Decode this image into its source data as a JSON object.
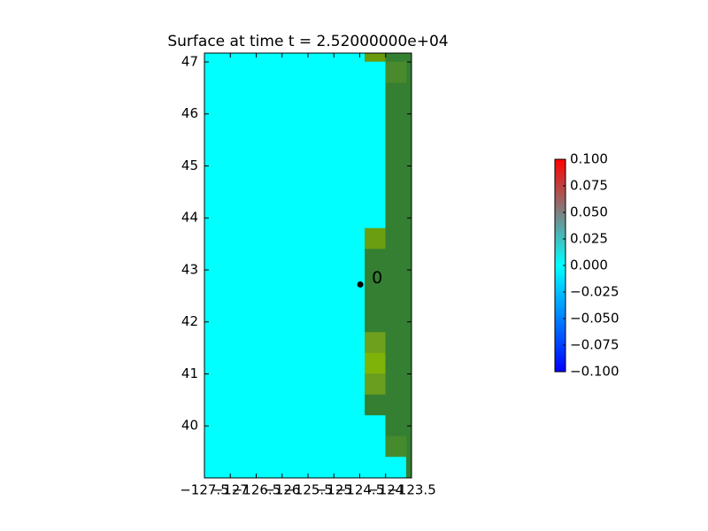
{
  "chart_data": {
    "type": "surface",
    "title": "Surface at time t = 2.52000000e+04",
    "xlim": [
      -127.5,
      -123.5
    ],
    "ylim": [
      39.0,
      47.17
    ],
    "xticks": [
      {
        "value": -127.5,
        "label": "−127.5"
      },
      {
        "value": -127,
        "label": "−127"
      },
      {
        "value": -126.5,
        "label": "−126.5"
      },
      {
        "value": -126,
        "label": "−126"
      },
      {
        "value": -125.5,
        "label": "−125.5"
      },
      {
        "value": -125,
        "label": "−125"
      },
      {
        "value": -124.5,
        "label": "−124.5"
      },
      {
        "value": -124,
        "label": "−124"
      },
      {
        "value": -123.5,
        "label": "−123.5"
      }
    ],
    "yticks": [
      40,
      41,
      42,
      43,
      44,
      45,
      46,
      47
    ],
    "cells": [
      {
        "x": [
          -127.5,
          -124.4
        ],
        "y": [
          39.0,
          47.17
        ],
        "color": "#00ffff"
      },
      {
        "x": [
          -124.4,
          -124.0
        ],
        "y": [
          47.0,
          47.17
        ],
        "color": "#6b9a0c"
      },
      {
        "x": [
          -124.4,
          -124.0
        ],
        "y": [
          43.8,
          47.0
        ],
        "color": "#00ffff"
      },
      {
        "x": [
          -124.4,
          -124.0
        ],
        "y": [
          43.4,
          43.8
        ],
        "color": "#6c9e12"
      },
      {
        "x": [
          -124.4,
          -124.0
        ],
        "y": [
          41.8,
          43.4
        ],
        "color": "#357f32"
      },
      {
        "x": [
          -124.4,
          -124.0
        ],
        "y": [
          41.4,
          41.8
        ],
        "color": "#6ea01e"
      },
      {
        "x": [
          -124.4,
          -124.0
        ],
        "y": [
          41.0,
          41.4
        ],
        "color": "#80b30a"
      },
      {
        "x": [
          -124.4,
          -124.0
        ],
        "y": [
          40.6,
          41.0
        ],
        "color": "#6a9e1e"
      },
      {
        "x": [
          -124.4,
          -124.0
        ],
        "y": [
          40.2,
          40.6
        ],
        "color": "#357f32"
      },
      {
        "x": [
          -124.4,
          -124.0
        ],
        "y": [
          39.0,
          40.2
        ],
        "color": "#00ffff"
      },
      {
        "x": [
          -124.0,
          -123.5
        ],
        "y": [
          39.4,
          47.17
        ],
        "color": "#357f32"
      },
      {
        "x": [
          -124.0,
          -123.6
        ],
        "y": [
          46.6,
          47.0
        ],
        "color": "#4a8a2c"
      },
      {
        "x": [
          -124.0,
          -123.6
        ],
        "y": [
          39.4,
          39.8
        ],
        "color": "#468a2e"
      },
      {
        "x": [
          -124.0,
          -123.6
        ],
        "y": [
          39.0,
          39.4
        ],
        "color": "#00ffff"
      },
      {
        "x": [
          -123.6,
          -123.5
        ],
        "y": [
          39.0,
          39.4
        ],
        "color": "#357f32"
      }
    ],
    "points": [
      {
        "x": -124.49,
        "y": 42.72,
        "label": "0",
        "color": "#000000"
      }
    ],
    "colorbar": {
      "lim": [
        -0.1,
        0.1
      ],
      "colors": [
        "#0000ff",
        "#0080ff",
        "#00ffff",
        "#808080",
        "#ff0000"
      ],
      "ticks": [
        {
          "value": 0.1,
          "label": "0.100"
        },
        {
          "value": 0.075,
          "label": "0.075"
        },
        {
          "value": 0.05,
          "label": "0.050"
        },
        {
          "value": 0.025,
          "label": "0.025"
        },
        {
          "value": 0,
          "label": "0.000"
        },
        {
          "value": -0.025,
          "label": "−0.025"
        },
        {
          "value": -0.05,
          "label": "−0.050"
        },
        {
          "value": -0.075,
          "label": "−0.075"
        },
        {
          "value": -0.1,
          "label": "−0.100"
        }
      ]
    }
  }
}
